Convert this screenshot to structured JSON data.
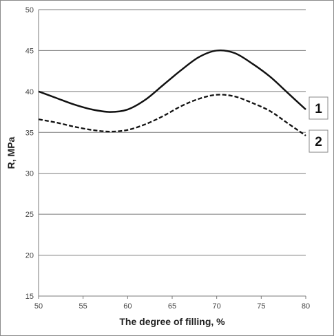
{
  "chart_data": {
    "type": "line",
    "title": "",
    "xlabel": "The degree of filling, %",
    "ylabel": "R, MPa",
    "xlim": [
      50,
      80
    ],
    "ylim": [
      15,
      50
    ],
    "x_ticks": [
      "50",
      "55",
      "60",
      "65",
      "70",
      "75",
      "80"
    ],
    "y_ticks": [
      "15",
      "20",
      "25",
      "30",
      "35",
      "40",
      "45",
      "50"
    ],
    "grid": "horizontal",
    "legend": "boxed labels at right end of lines",
    "series": [
      {
        "name": "1",
        "style": "solid",
        "color": "#111111",
        "x": [
          50,
          52,
          54,
          56,
          58,
          60,
          62,
          64,
          66,
          68,
          70,
          72,
          74,
          76,
          78,
          80
        ],
        "y": [
          40.0,
          39.2,
          38.4,
          37.8,
          37.5,
          37.8,
          39.0,
          40.8,
          42.6,
          44.2,
          45.0,
          44.7,
          43.4,
          41.8,
          39.8,
          37.8
        ]
      },
      {
        "name": "2",
        "style": "dashed",
        "color": "#111111",
        "x": [
          50,
          52,
          54,
          56,
          58,
          60,
          62,
          64,
          66,
          68,
          70,
          72,
          74,
          76,
          78,
          80
        ],
        "y": [
          36.6,
          36.2,
          35.7,
          35.3,
          35.1,
          35.3,
          36.0,
          37.0,
          38.2,
          39.1,
          39.6,
          39.4,
          38.6,
          37.6,
          36.1,
          34.6
        ]
      }
    ]
  }
}
